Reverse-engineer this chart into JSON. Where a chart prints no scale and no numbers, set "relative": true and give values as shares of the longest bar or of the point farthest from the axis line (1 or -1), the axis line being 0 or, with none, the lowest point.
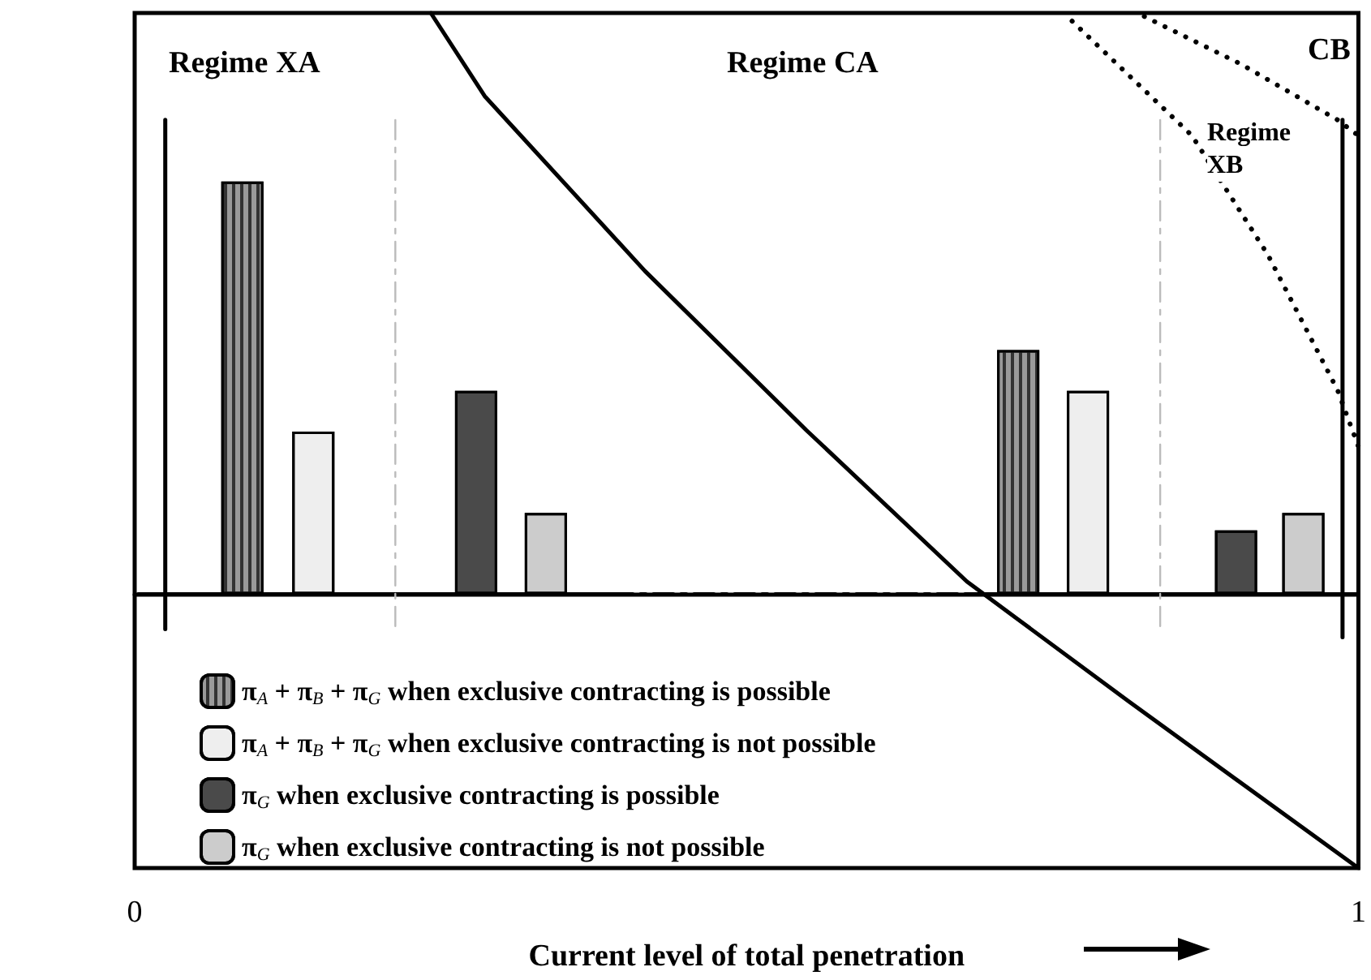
{
  "chart_data": {
    "type": "bar",
    "relative": true,
    "xlabel": "Current level of total penetration",
    "xlim": [
      0,
      1
    ],
    "xticks": [
      0,
      1
    ],
    "grid": false,
    "legend": "bottom left",
    "annotations": [
      "Regime XA",
      "Regime CA",
      "CB",
      "Regime\nXB"
    ],
    "series": [
      {
        "name": "π$_{A}$ + π$_{B}$ + π$_{G}$ when exclusive contracting is possible",
        "color": "#9a9a9a",
        "x": [
          0.088,
          0.722
        ],
        "values": [
          0.71,
          0.42
        ]
      },
      {
        "name": "π$_{A}$ + π$_{B}$ + π$_{G}$ when exclusive contracting is not possible",
        "color": "#eeeeee",
        "x": [
          0.146,
          0.779
        ],
        "values": [
          0.28,
          0.35
        ]
      },
      {
        "name": "π$_{G}$ when exclusive contracting is possible",
        "color": "#4a4a4a",
        "x": [
          0.279,
          0.9
        ],
        "values": [
          0.35,
          0.11
        ]
      },
      {
        "name": "π$_{G}$ when exclusive contracting is not possible",
        "color": "#cccccc",
        "x": [
          0.336,
          0.955
        ],
        "values": [
          0.14,
          0.14
        ]
      },
      {
        "type": "line",
        "color": "#000000",
        "line_style": "solid",
        "marker": "none",
        "x": [
          0.242,
          0.286,
          0.417,
          0.549,
          0.68,
          0.812,
          1
        ],
        "values": [
          1,
          0.857,
          0.556,
          0.282,
          0.022,
          -0.184,
          -0.471
        ]
      },
      {
        "type": "line",
        "color": "#000000",
        "line_style": "dotted",
        "marker": "none",
        "x": [
          0.825,
          0.904,
          0.983,
          1
        ],
        "values": [
          0.994,
          0.912,
          0.816,
          0.789
        ]
      },
      {
        "type": "line",
        "color": "#000000",
        "line_style": "dotted",
        "marker": "none",
        "x": [
          0.766,
          0.864,
          0.926,
          0.983,
          1
        ],
        "values": [
          0.986,
          0.789,
          0.584,
          0.351,
          0.254
        ]
      },
      {
        "type": "line",
        "color": "#000000",
        "line_style": "dashed",
        "marker": "none",
        "x": [
          0.391,
          0.68
        ],
        "values": [
          0,
          0
        ]
      },
      {
        "type": "line",
        "color": "#000000",
        "line_style": "solid",
        "marker": "none",
        "x": [
          0.003,
          0.391,
          0.5,
          0.68,
          1
        ],
        "values": [
          0,
          0,
          null,
          0,
          0
        ]
      },
      {
        "type": "line",
        "color": "#000000",
        "line_style": "solid",
        "marker": "none",
        "x": [
          0.025,
          0.025
        ],
        "values": [
          0.816,
          -0.06
        ]
      },
      {
        "type": "line",
        "color": "#000000",
        "line_style": "solid",
        "marker": "none",
        "x": [
          0.987,
          0.987
        ],
        "values": [
          0.816,
          -0.074
        ]
      },
      {
        "type": "line",
        "color": "#bbbbbb",
        "line_style": "dashed",
        "marker": "none",
        "x": [
          0.213,
          0.213
        ],
        "values": [
          0.816,
          -0.06
        ]
      },
      {
        "type": "line",
        "color": "#bbbbbb",
        "line_style": "dashed",
        "marker": "none",
        "x": [
          0.838,
          0.838
        ],
        "values": [
          0.816,
          -0.06
        ]
      }
    ]
  }
}
